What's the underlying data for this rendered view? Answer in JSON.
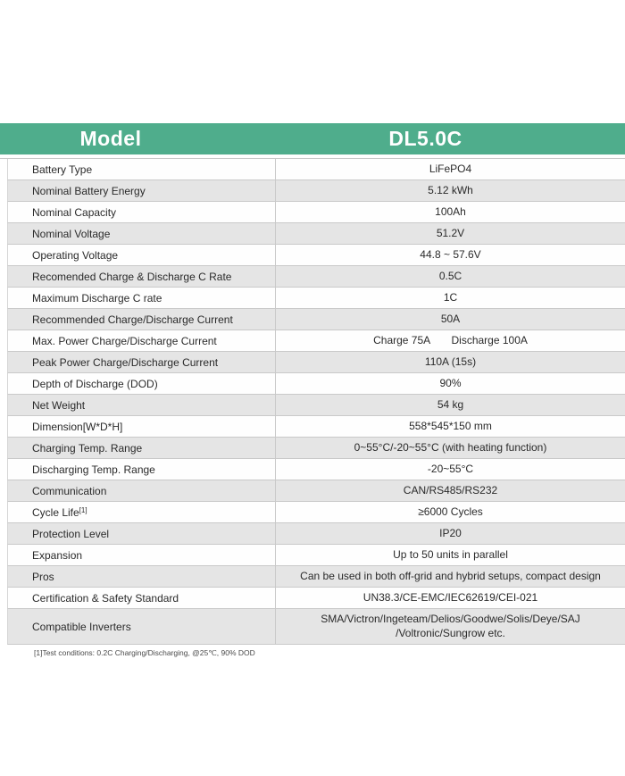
{
  "colors": {
    "header_bg": "#4FAD8C",
    "header_text": "#FFFFFF",
    "alt_row_bg": "#E5E5E5",
    "border": "#C9C9C9"
  },
  "header": {
    "model_label": "Model",
    "model_value": "DL5.0C"
  },
  "rows": [
    {
      "label": "Battery Type",
      "value": "LiFePO4"
    },
    {
      "label": "Nominal Battery Energy",
      "value": "5.12 kWh"
    },
    {
      "label": "Nominal Capacity",
      "value": "100Ah"
    },
    {
      "label": "Nominal Voltage",
      "value": "51.2V"
    },
    {
      "label": "Operating Voltage",
      "value": "44.8 ~ 57.6V"
    },
    {
      "label": "Recomended Charge & Discharge C Rate",
      "value": "0.5C"
    },
    {
      "label": "Maximum Discharge C rate",
      "value": "1C"
    },
    {
      "label": "Recommended Charge/Discharge Current",
      "value": "50A"
    },
    {
      "label": "Max. Power Charge/Discharge Current",
      "value": "Charge 75A       Discharge 100A"
    },
    {
      "label": "Peak Power Charge/Discharge Current",
      "value": "110A (15s)"
    },
    {
      "label": "Depth of Discharge (DOD)",
      "value": "90%"
    },
    {
      "label": "Net Weight",
      "value": "54 kg"
    },
    {
      "label": "Dimension[W*D*H]",
      "value": "558*545*150 mm"
    },
    {
      "label": "Charging Temp. Range",
      "value": "0~55°C/-20~55°C (with heating function)"
    },
    {
      "label": "Discharging Temp. Range",
      "value": "-20~55°C"
    },
    {
      "label": "Communication",
      "value": "CAN/RS485/RS232"
    },
    {
      "label": "Cycle Life",
      "sup": "[1]",
      "value": "≥6000 Cycles"
    },
    {
      "label": "Protection Level",
      "value": "IP20"
    },
    {
      "label": "Expansion",
      "value": "Up to 50 units in parallel"
    },
    {
      "label": "Pros",
      "value": "Can be used in both off-grid and hybrid setups, compact design"
    },
    {
      "label": "Certification & Safety Standard",
      "value": "UN38.3/CE-EMC/IEC62619/CEI-021"
    },
    {
      "label": "Compatible Inverters",
      "value": "SMA/Victron/Ingeteam/Delios/Goodwe/Solis/Deye/SAJ\n/Voltronic/Sungrow etc."
    }
  ],
  "footnote": "[1]Test conditions: 0.2C Charging/Discharging, @25℃, 90% DOD"
}
